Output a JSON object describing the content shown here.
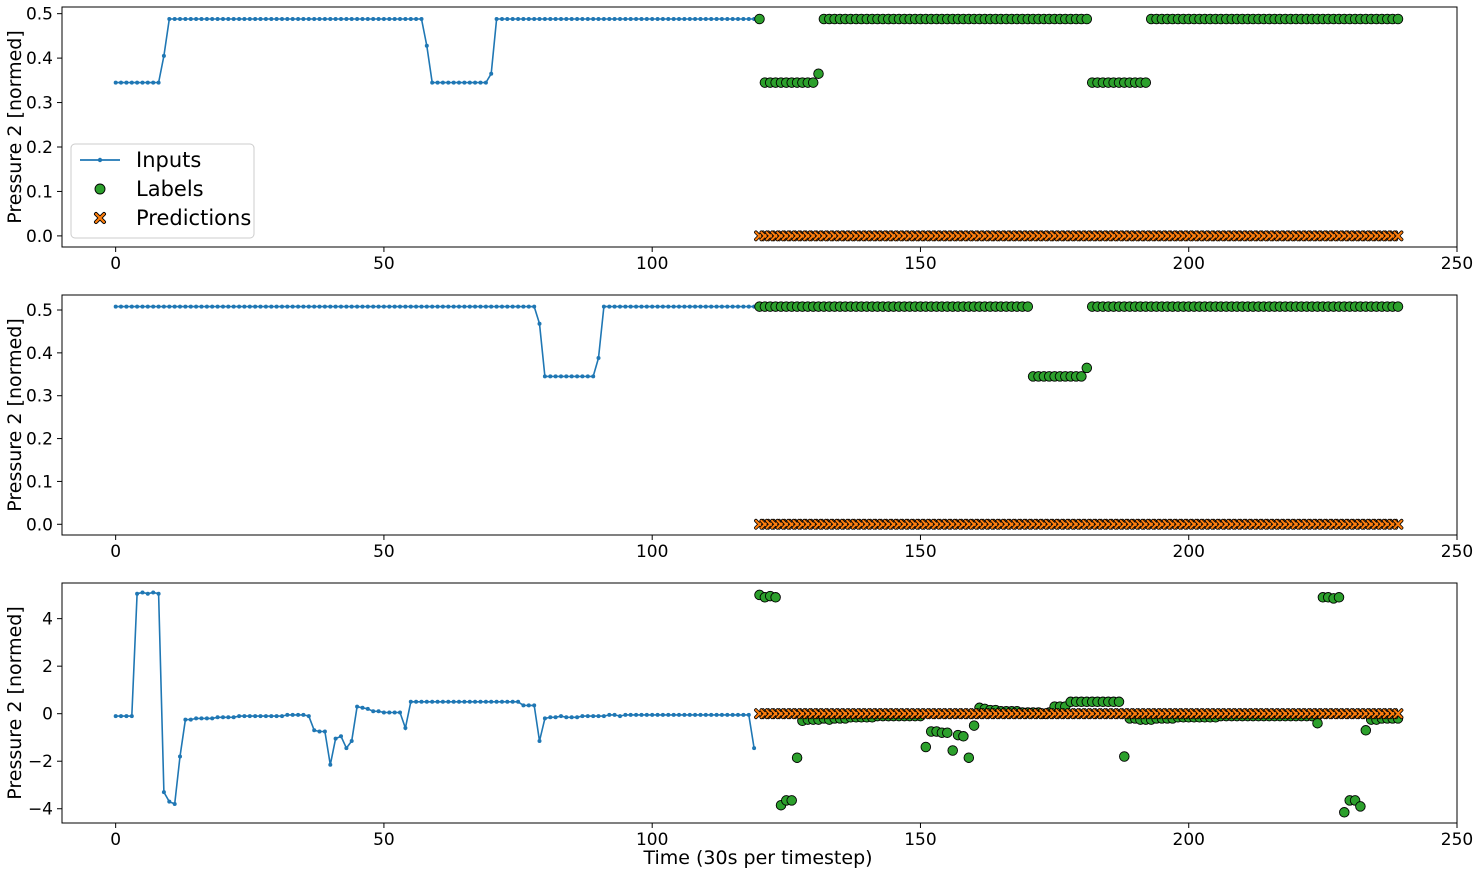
{
  "chart_data": {
    "type": "scatter",
    "shared_xlabel": "Time (30s per timestep)",
    "legend": {
      "placement": "lower-left of top panel",
      "entries": [
        {
          "name": "Inputs",
          "marker": "line-dot",
          "color": "#1f77b4"
        },
        {
          "name": "Labels",
          "marker": "circle",
          "color": "#2ca02c"
        },
        {
          "name": "Predictions",
          "marker": "x",
          "color": "#ff7f0e"
        }
      ]
    },
    "panels": [
      {
        "ylabel": "Pressure 2 [normed]",
        "xlim": [
          -10,
          250
        ],
        "ylim": [
          -0.025,
          0.515
        ],
        "xticks": [
          0,
          50,
          100,
          150,
          200,
          250
        ],
        "yticks": [
          0.0,
          0.1,
          0.2,
          0.3,
          0.4,
          0.5
        ],
        "ytick_labels": [
          "0.0",
          "0.1",
          "0.2",
          "0.3",
          "0.4",
          "0.5"
        ],
        "inputs": {
          "x_start": 0,
          "values": [
            0.345,
            0.345,
            0.345,
            0.345,
            0.345,
            0.345,
            0.345,
            0.345,
            0.345,
            0.405,
            0.488,
            0.488,
            0.488,
            0.488,
            0.488,
            0.488,
            0.488,
            0.488,
            0.488,
            0.488,
            0.488,
            0.488,
            0.488,
            0.488,
            0.488,
            0.488,
            0.488,
            0.488,
            0.488,
            0.488,
            0.488,
            0.488,
            0.488,
            0.488,
            0.488,
            0.488,
            0.488,
            0.488,
            0.488,
            0.488,
            0.488,
            0.488,
            0.488,
            0.488,
            0.488,
            0.488,
            0.488,
            0.488,
            0.488,
            0.488,
            0.488,
            0.488,
            0.488,
            0.488,
            0.488,
            0.488,
            0.488,
            0.488,
            0.428,
            0.345,
            0.345,
            0.345,
            0.345,
            0.345,
            0.345,
            0.345,
            0.345,
            0.345,
            0.345,
            0.345,
            0.365,
            0.488,
            0.488,
            0.488,
            0.488,
            0.488,
            0.488,
            0.488,
            0.488,
            0.488,
            0.488,
            0.488,
            0.488,
            0.488,
            0.488,
            0.488,
            0.488,
            0.488,
            0.488,
            0.488,
            0.488,
            0.488,
            0.488,
            0.488,
            0.488,
            0.488,
            0.488,
            0.488,
            0.488,
            0.488,
            0.488,
            0.488,
            0.488,
            0.488,
            0.488,
            0.488,
            0.488,
            0.488,
            0.488,
            0.488,
            0.488,
            0.488,
            0.488,
            0.488,
            0.488,
            0.488,
            0.488,
            0.488,
            0.488,
            0.488
          ]
        },
        "labels": {
          "segments": [
            {
              "from": 120,
              "to": 120,
              "value": 0.488
            },
            {
              "from": 121,
              "to": 130,
              "value": 0.345
            },
            {
              "from": 131,
              "to": 131,
              "value": 0.365
            },
            {
              "from": 132,
              "to": 181,
              "value": 0.488
            },
            {
              "from": 182,
              "to": 192,
              "value": 0.345
            },
            {
              "from": 193,
              "to": 239,
              "value": 0.488
            }
          ]
        },
        "predictions": {
          "from": 120,
          "to": 239,
          "value": 0.0
        }
      },
      {
        "ylabel": "Pressure 2 [normed]",
        "xlim": [
          -10,
          250
        ],
        "ylim": [
          -0.025,
          0.535
        ],
        "xticks": [
          0,
          50,
          100,
          150,
          200,
          250
        ],
        "yticks": [
          0.0,
          0.1,
          0.2,
          0.3,
          0.4,
          0.5
        ],
        "ytick_labels": [
          "0.0",
          "0.1",
          "0.2",
          "0.3",
          "0.4",
          "0.5"
        ],
        "inputs": {
          "x_start": 0,
          "values": [
            0.508,
            0.508,
            0.508,
            0.508,
            0.508,
            0.508,
            0.508,
            0.508,
            0.508,
            0.508,
            0.508,
            0.508,
            0.508,
            0.508,
            0.508,
            0.508,
            0.508,
            0.508,
            0.508,
            0.508,
            0.508,
            0.508,
            0.508,
            0.508,
            0.508,
            0.508,
            0.508,
            0.508,
            0.508,
            0.508,
            0.508,
            0.508,
            0.508,
            0.508,
            0.508,
            0.508,
            0.508,
            0.508,
            0.508,
            0.508,
            0.508,
            0.508,
            0.508,
            0.508,
            0.508,
            0.508,
            0.508,
            0.508,
            0.508,
            0.508,
            0.508,
            0.508,
            0.508,
            0.508,
            0.508,
            0.508,
            0.508,
            0.508,
            0.508,
            0.508,
            0.508,
            0.508,
            0.508,
            0.508,
            0.508,
            0.508,
            0.508,
            0.508,
            0.508,
            0.508,
            0.508,
            0.508,
            0.508,
            0.508,
            0.508,
            0.508,
            0.508,
            0.508,
            0.508,
            0.468,
            0.345,
            0.345,
            0.345,
            0.345,
            0.345,
            0.345,
            0.345,
            0.345,
            0.345,
            0.345,
            0.388,
            0.508,
            0.508,
            0.508,
            0.508,
            0.508,
            0.508,
            0.508,
            0.508,
            0.508,
            0.508,
            0.508,
            0.508,
            0.508,
            0.508,
            0.508,
            0.508,
            0.508,
            0.508,
            0.508,
            0.508,
            0.508,
            0.508,
            0.508,
            0.508,
            0.508,
            0.508,
            0.508,
            0.508,
            0.508
          ]
        },
        "labels": {
          "segments": [
            {
              "from": 120,
              "to": 170,
              "value": 0.508
            },
            {
              "from": 171,
              "to": 180,
              "value": 0.345
            },
            {
              "from": 181,
              "to": 181,
              "value": 0.365
            },
            {
              "from": 182,
              "to": 239,
              "value": 0.508
            }
          ]
        },
        "predictions": {
          "from": 120,
          "to": 239,
          "value": 0.0
        }
      },
      {
        "ylabel": "Pressure 2 [normed]",
        "xlabel": "Time (30s per timestep)",
        "xlim": [
          -10,
          250
        ],
        "ylim": [
          -4.6,
          5.5
        ],
        "xticks": [
          0,
          50,
          100,
          150,
          200,
          250
        ],
        "yticks": [
          -4,
          -2,
          0,
          2,
          4
        ],
        "ytick_labels": [
          "−4",
          "−2",
          "0",
          "2",
          "4"
        ],
        "inputs": {
          "x_start": 0,
          "values": [
            -0.1,
            -0.1,
            -0.1,
            -0.1,
            5.05,
            5.1,
            5.05,
            5.1,
            5.05,
            -3.3,
            -3.7,
            -3.8,
            -1.8,
            -0.25,
            -0.25,
            -0.2,
            -0.2,
            -0.2,
            -0.2,
            -0.15,
            -0.15,
            -0.15,
            -0.15,
            -0.1,
            -0.1,
            -0.1,
            -0.1,
            -0.1,
            -0.1,
            -0.1,
            -0.1,
            -0.1,
            -0.05,
            -0.05,
            -0.05,
            -0.05,
            -0.1,
            -0.7,
            -0.75,
            -0.75,
            -2.15,
            -1.05,
            -0.95,
            -1.45,
            -1.15,
            0.3,
            0.25,
            0.2,
            0.1,
            0.1,
            0.05,
            0.05,
            0.05,
            0.05,
            -0.6,
            0.5,
            0.5,
            0.5,
            0.5,
            0.5,
            0.5,
            0.5,
            0.5,
            0.5,
            0.5,
            0.5,
            0.5,
            0.5,
            0.5,
            0.5,
            0.5,
            0.5,
            0.5,
            0.5,
            0.5,
            0.5,
            0.35,
            0.35,
            0.35,
            -1.15,
            -0.2,
            -0.15,
            -0.15,
            -0.1,
            -0.15,
            -0.15,
            -0.15,
            -0.1,
            -0.1,
            -0.1,
            -0.1,
            -0.1,
            -0.05,
            -0.05,
            -0.1,
            -0.05,
            -0.05,
            -0.05,
            -0.05,
            -0.05,
            -0.05,
            -0.05,
            -0.05,
            -0.05,
            -0.05,
            -0.05,
            -0.05,
            -0.05,
            -0.05,
            -0.05,
            -0.05,
            -0.05,
            -0.05,
            -0.05,
            -0.05,
            -0.05,
            -0.05,
            -0.05,
            -0.05,
            -1.45
          ]
        },
        "labels": {
          "x_start": 120,
          "values": [
            5.0,
            4.9,
            4.95,
            4.9,
            -3.85,
            -3.65,
            -3.65,
            -1.85,
            -0.3,
            -0.25,
            -0.25,
            -0.25,
            -0.2,
            -0.25,
            -0.2,
            -0.2,
            -0.2,
            -0.15,
            -0.15,
            -0.15,
            -0.15,
            -0.15,
            -0.1,
            -0.1,
            -0.1,
            -0.1,
            -0.1,
            -0.1,
            -0.1,
            -0.1,
            -0.1,
            -1.4,
            -0.75,
            -0.75,
            -0.8,
            -0.8,
            -1.55,
            -0.9,
            -0.95,
            -1.85,
            -0.5,
            0.25,
            0.2,
            0.15,
            0.15,
            0.1,
            0.1,
            0.1,
            0.1,
            0.05,
            0.05,
            0.05,
            0.05,
            0.0,
            0.05,
            0.3,
            0.3,
            0.3,
            0.5,
            0.5,
            0.5,
            0.5,
            0.5,
            0.5,
            0.5,
            0.5,
            0.5,
            0.5,
            -1.8,
            -0.2,
            -0.2,
            -0.25,
            -0.25,
            -0.25,
            -0.2,
            -0.2,
            -0.2,
            -0.2,
            -0.15,
            -0.15,
            -0.15,
            -0.15,
            -0.15,
            -0.15,
            -0.15,
            -0.15,
            -0.1,
            -0.1,
            -0.1,
            -0.1,
            -0.1,
            -0.1,
            -0.1,
            -0.1,
            -0.1,
            -0.1,
            -0.1,
            -0.1,
            -0.1,
            -0.1,
            -0.1,
            -0.1,
            -0.1,
            -0.1,
            -0.4,
            4.9,
            4.9,
            4.85,
            4.9,
            -4.15,
            -3.65,
            -3.65,
            -3.9,
            -0.7,
            -0.25,
            -0.25,
            -0.2,
            -0.2,
            -0.2,
            -0.2
          ]
        },
        "predictions": {
          "from": 120,
          "to": 239,
          "value": 0.0
        }
      }
    ]
  }
}
